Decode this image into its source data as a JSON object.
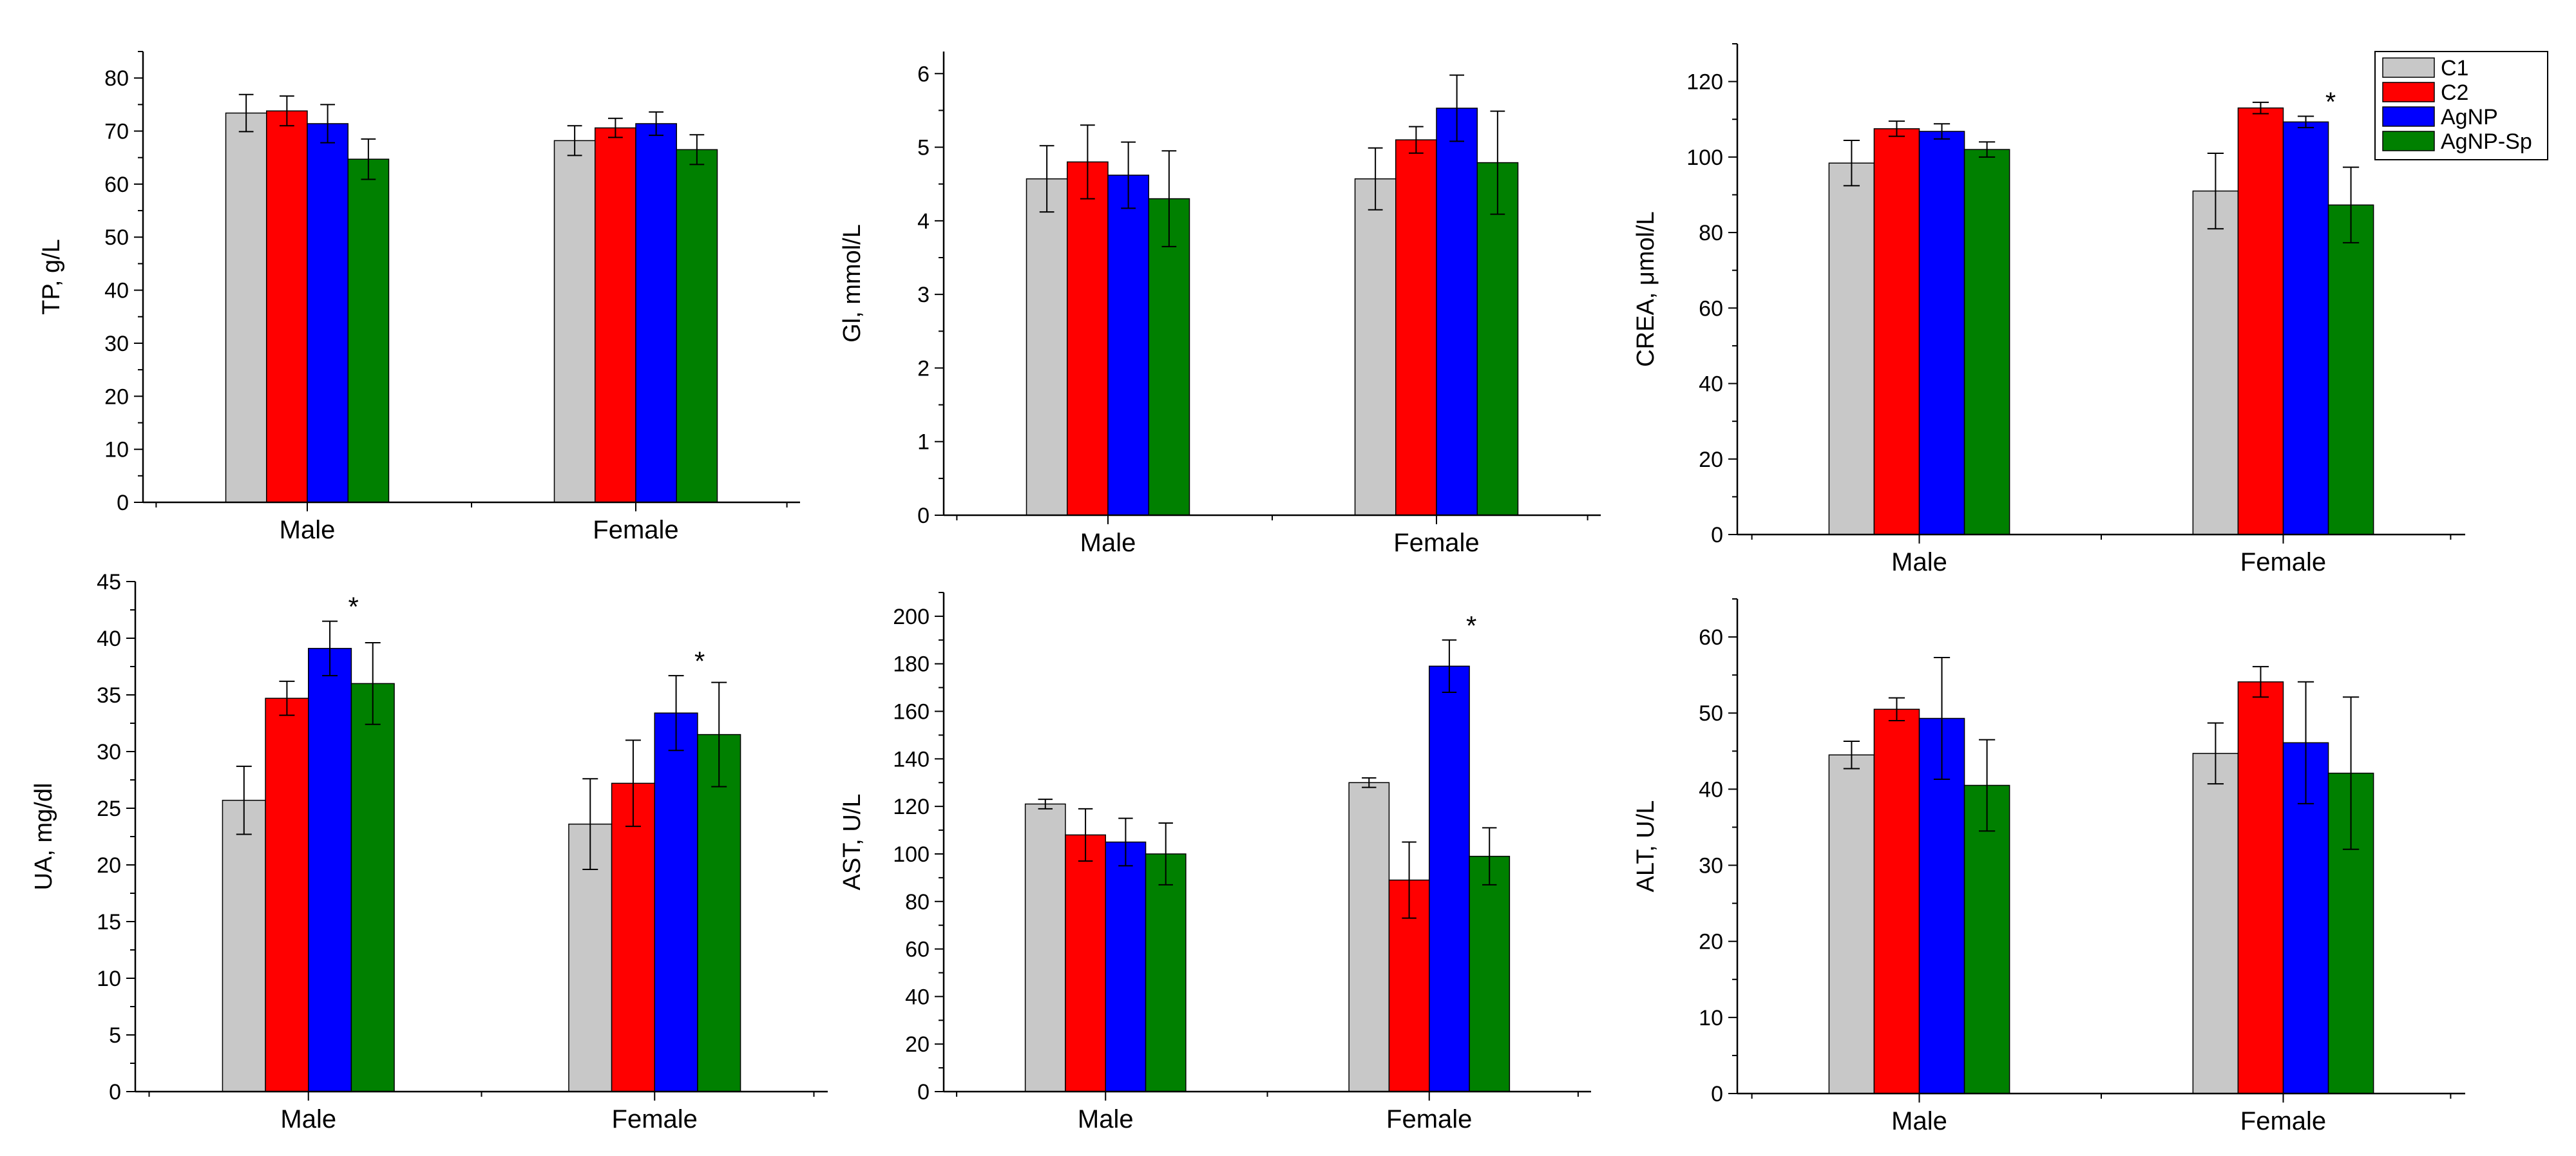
{
  "legend": {
    "placement": "top-right",
    "items": [
      {
        "name": "C1",
        "color": "#c8c8c8"
      },
      {
        "name": "C2",
        "color": "#ff0000"
      },
      {
        "name": "AgNP",
        "color": "#0000ff"
      },
      {
        "name": "AgNP-Sp",
        "color": "#008000"
      }
    ]
  },
  "chart_data": [
    {
      "type": "bar",
      "ylabel": "TP, g/L",
      "categories": [
        "Male",
        "Female"
      ],
      "ylim": [
        0,
        85
      ],
      "yticks": [
        0,
        10,
        20,
        30,
        40,
        50,
        60,
        70,
        80
      ],
      "series": [
        {
          "name": "C1",
          "values": [
            73.4,
            68.2
          ],
          "errors": [
            3.5,
            2.8
          ]
        },
        {
          "name": "C2",
          "values": [
            73.8,
            70.6
          ],
          "errors": [
            2.8,
            1.8
          ]
        },
        {
          "name": "AgNP",
          "values": [
            71.4,
            71.4
          ],
          "errors": [
            3.6,
            2.2
          ]
        },
        {
          "name": "AgNP-Sp",
          "values": [
            64.7,
            66.5
          ],
          "errors": [
            3.8,
            2.8
          ]
        }
      ],
      "annotations": []
    },
    {
      "type": "bar",
      "ylabel": "Gl, mmol/L",
      "categories": [
        "Male",
        "Female"
      ],
      "ylim": [
        0,
        6.3
      ],
      "yticks": [
        0,
        1,
        2,
        3,
        4,
        5,
        6
      ],
      "series": [
        {
          "name": "C1",
          "values": [
            4.57,
            4.57
          ],
          "errors": [
            0.45,
            0.42
          ]
        },
        {
          "name": "C2",
          "values": [
            4.8,
            5.1
          ],
          "errors": [
            0.5,
            0.18
          ]
        },
        {
          "name": "AgNP",
          "values": [
            4.62,
            5.53
          ],
          "errors": [
            0.45,
            0.45
          ]
        },
        {
          "name": "AgNP-Sp",
          "values": [
            4.3,
            4.79
          ],
          "errors": [
            0.65,
            0.7
          ]
        }
      ],
      "annotations": []
    },
    {
      "type": "bar",
      "ylabel": "CREA, μmol/L",
      "categories": [
        "Male",
        "Female"
      ],
      "ylim": [
        0,
        130
      ],
      "yticks": [
        0,
        20,
        40,
        60,
        80,
        100,
        120
      ],
      "series": [
        {
          "name": "C1",
          "values": [
            98.4,
            91
          ],
          "errors": [
            6,
            10
          ]
        },
        {
          "name": "C2",
          "values": [
            107.5,
            113
          ],
          "errors": [
            2,
            1.5
          ]
        },
        {
          "name": "AgNP",
          "values": [
            106.8,
            109.3
          ],
          "errors": [
            2,
            1.5
          ]
        },
        {
          "name": "AgNP-Sp",
          "values": [
            102,
            87.3
          ],
          "errors": [
            2,
            10
          ]
        }
      ],
      "annotations": [
        {
          "text": "*",
          "category": "Female",
          "series": "AgNP"
        }
      ]
    },
    {
      "type": "bar",
      "ylabel": "UA, mg/dl",
      "categories": [
        "Male",
        "Female"
      ],
      "ylim": [
        0,
        45
      ],
      "yticks": [
        0,
        5,
        10,
        15,
        20,
        25,
        30,
        35,
        40,
        45
      ],
      "series": [
        {
          "name": "C1",
          "values": [
            25.7,
            23.6
          ],
          "errors": [
            3,
            4
          ]
        },
        {
          "name": "C2",
          "values": [
            34.7,
            27.2
          ],
          "errors": [
            1.5,
            3.8
          ]
        },
        {
          "name": "AgNP",
          "values": [
            39.1,
            33.4
          ],
          "errors": [
            2.4,
            3.3
          ]
        },
        {
          "name": "AgNP-Sp",
          "values": [
            36,
            31.5
          ],
          "errors": [
            3.6,
            4.6
          ]
        }
      ],
      "annotations": [
        {
          "text": "*",
          "category": "Male",
          "series": "AgNP"
        },
        {
          "text": "*",
          "category": "Female",
          "series": "AgNP"
        }
      ]
    },
    {
      "type": "bar",
      "ylabel": "AST, U/L",
      "categories": [
        "Male",
        "Female"
      ],
      "ylim": [
        0,
        210
      ],
      "yticks": [
        0,
        20,
        40,
        60,
        80,
        100,
        120,
        140,
        160,
        180,
        200
      ],
      "series": [
        {
          "name": "C1",
          "values": [
            121,
            130
          ],
          "errors": [
            2,
            2
          ]
        },
        {
          "name": "C2",
          "values": [
            108,
            89
          ],
          "errors": [
            11,
            16
          ]
        },
        {
          "name": "AgNP",
          "values": [
            105,
            179
          ],
          "errors": [
            10,
            11
          ]
        },
        {
          "name": "AgNP-Sp",
          "values": [
            100,
            99
          ],
          "errors": [
            13,
            12
          ]
        }
      ],
      "annotations": [
        {
          "text": "*",
          "category": "Female",
          "series": "AgNP"
        }
      ]
    },
    {
      "type": "bar",
      "ylabel": "ALT, U/L",
      "categories": [
        "Male",
        "Female"
      ],
      "ylim": [
        0,
        65
      ],
      "yticks": [
        0,
        10,
        20,
        30,
        40,
        50,
        60
      ],
      "series": [
        {
          "name": "C1",
          "values": [
            44.5,
            44.7
          ],
          "errors": [
            1.8,
            4
          ]
        },
        {
          "name": "C2",
          "values": [
            50.5,
            54.1
          ],
          "errors": [
            1.5,
            2
          ]
        },
        {
          "name": "AgNP",
          "values": [
            49.3,
            46.1
          ],
          "errors": [
            8,
            8
          ]
        },
        {
          "name": "AgNP-Sp",
          "values": [
            40.5,
            42.1
          ],
          "errors": [
            6,
            10
          ]
        }
      ],
      "annotations": []
    }
  ]
}
